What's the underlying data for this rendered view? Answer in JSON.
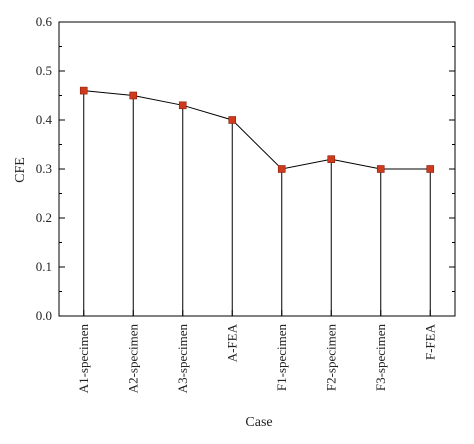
{
  "chart_data": {
    "type": "line",
    "xlabel": "Case",
    "ylabel": "CFE",
    "categories": [
      "A1-specimen",
      "A2-specimen",
      "A3-specimen",
      "A-FEA",
      "F1-specimen",
      "F2-specimen",
      "F3-specimen",
      "F-FEA"
    ],
    "series": [
      {
        "values": [
          0.46,
          0.45,
          0.43,
          0.4,
          0.3,
          0.32,
          0.3,
          0.3
        ]
      }
    ],
    "ylim": [
      0.0,
      0.6
    ],
    "yticks": [
      "0.0",
      "0.1",
      "0.2",
      "0.3",
      "0.4",
      "0.5",
      "0.6"
    ],
    "drop_lines": true,
    "grid": false,
    "marker": "square",
    "colors": {
      "marker": "#d03a1c",
      "line": "#000000",
      "axis": "#000000"
    }
  }
}
